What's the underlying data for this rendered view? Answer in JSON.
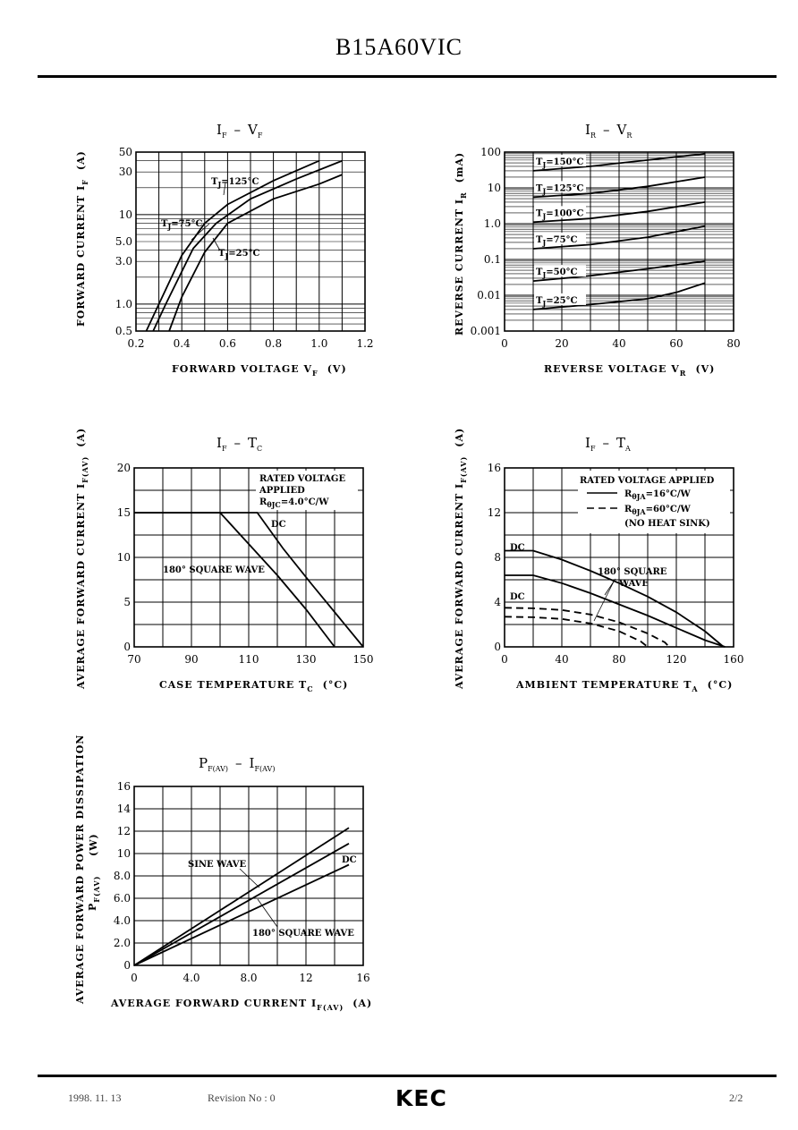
{
  "header": {
    "part_number": "B15A60VIC"
  },
  "footer": {
    "date": "1998. 11. 13",
    "revision": "Revision No : 0",
    "brand": "KEC",
    "page": "2/2"
  },
  "chart_data": [
    {
      "id": "if_vf",
      "type": "line",
      "title": "IF – VF",
      "xlabel": "FORWARD VOLTAGE VF (V)",
      "ylabel": "FORWARD CURRENT IF (A)",
      "xlim": [
        0.2,
        1.2
      ],
      "ylim": [
        0.5,
        50
      ],
      "yscale": "log",
      "x_ticks": [
        "0.2",
        "0.4",
        "0.6",
        "0.8",
        "1.0",
        "1.2"
      ],
      "y_ticks": [
        "0.5",
        "1.0",
        "3.0",
        "5.0",
        "10",
        "30",
        "50"
      ],
      "series": [
        {
          "name": "TJ=125°C",
          "points": [
            [
              0.245,
              0.5
            ],
            [
              0.3,
              1.0
            ],
            [
              0.4,
              3.5
            ],
            [
              0.5,
              8.0
            ],
            [
              0.6,
              13
            ],
            [
              0.8,
              24
            ],
            [
              1.0,
              40
            ]
          ]
        },
        {
          "name": "TJ=75°C",
          "points": [
            [
              0.275,
              0.5
            ],
            [
              0.33,
              1.0
            ],
            [
              0.45,
              4.2
            ],
            [
              0.55,
              8.0
            ],
            [
              0.7,
              15
            ],
            [
              0.9,
              25
            ],
            [
              1.1,
              40
            ]
          ]
        },
        {
          "name": "TJ=25°C",
          "points": [
            [
              0.345,
              0.5
            ],
            [
              0.4,
              1.2
            ],
            [
              0.5,
              3.8
            ],
            [
              0.6,
              8.0
            ],
            [
              0.8,
              15
            ],
            [
              1.0,
              22
            ],
            [
              1.1,
              28
            ]
          ]
        }
      ],
      "annotations": [
        "TJ=125°C",
        "TJ=75°C",
        "TJ=25°C"
      ]
    },
    {
      "id": "ir_vr",
      "type": "line",
      "title": "IR – VR",
      "xlabel": "REVERSE VOLTAGE VR (V)",
      "ylabel": "REVERSE CURRENT IR (mA)",
      "xlim": [
        0,
        80
      ],
      "ylim": [
        0.001,
        100
      ],
      "yscale": "log",
      "x_ticks": [
        "0",
        "20",
        "40",
        "60",
        "80"
      ],
      "y_ticks": [
        "0.001",
        "0.01",
        "0.1",
        "1.0",
        "10",
        "100"
      ],
      "series": [
        {
          "name": "TJ=150°C",
          "points": [
            [
              10,
              30
            ],
            [
              30,
              40
            ],
            [
              50,
              60
            ],
            [
              70,
              90
            ]
          ]
        },
        {
          "name": "TJ=125°C",
          "points": [
            [
              10,
              5.5
            ],
            [
              30,
              7
            ],
            [
              50,
              11
            ],
            [
              70,
              20
            ]
          ]
        },
        {
          "name": "TJ=100°C",
          "points": [
            [
              10,
              1.1
            ],
            [
              30,
              1.4
            ],
            [
              50,
              2.2
            ],
            [
              70,
              4
            ]
          ]
        },
        {
          "name": "TJ=75°C",
          "points": [
            [
              10,
              0.2
            ],
            [
              30,
              0.26
            ],
            [
              50,
              0.42
            ],
            [
              70,
              0.85
            ]
          ]
        },
        {
          "name": "TJ=50°C",
          "points": [
            [
              10,
              0.025
            ],
            [
              30,
              0.035
            ],
            [
              50,
              0.055
            ],
            [
              70,
              0.09
            ]
          ]
        },
        {
          "name": "TJ=25°C",
          "points": [
            [
              10,
              0.004
            ],
            [
              30,
              0.0055
            ],
            [
              50,
              0.008
            ],
            [
              60,
              0.012
            ],
            [
              70,
              0.022
            ]
          ]
        }
      ]
    },
    {
      "id": "if_tc",
      "type": "line",
      "title": "IF – TC",
      "xlabel": "CASE TEMPERATURE TC (°C)",
      "ylabel": "AVERAGE FORWARD CURRENT IF(AV) (A)",
      "xlim": [
        70,
        150
      ],
      "ylim": [
        0,
        20
      ],
      "x_ticks": [
        "70",
        "90",
        "110",
        "130",
        "150"
      ],
      "y_ticks": [
        "0",
        "5",
        "10",
        "15",
        "20"
      ],
      "note": [
        "RATED VOLTAGE",
        "APPLIED",
        "RθJC =4.0°C/W"
      ],
      "series": [
        {
          "name": "DC",
          "points": [
            [
              70,
              15
            ],
            [
              113,
              15
            ],
            [
              122,
              11
            ],
            [
              132,
              7
            ],
            [
              141,
              3.5
            ],
            [
              150,
              0
            ]
          ]
        },
        {
          "name": "180° SQUARE WAVE",
          "points": [
            [
              70,
              15
            ],
            [
              100,
              15
            ],
            [
              110,
              11.5
            ],
            [
              120,
              8
            ],
            [
              130,
              4.2
            ],
            [
              140,
              0
            ]
          ]
        }
      ]
    },
    {
      "id": "if_ta",
      "type": "line",
      "title": "IF – TA",
      "xlabel": "AMBIENT TEMPERATURE TA (°C)",
      "ylabel": "AVERAGE FORWARD CURRENT IF(AV) (A)",
      "xlim": [
        0,
        160
      ],
      "ylim": [
        0,
        16
      ],
      "x_ticks": [
        "0",
        "40",
        "80",
        "120",
        "160"
      ],
      "y_ticks": [
        "0",
        "4",
        "8",
        "12",
        "16"
      ],
      "note": [
        "RATED VOLTAGE APPLIED",
        "RθJA =16°C/W",
        "RθJA =60°C/W",
        "(NO HEAT SINK)"
      ],
      "series": [
        {
          "name": "DC RθJA=16°C/W",
          "style": "solid",
          "points": [
            [
              0,
              8.6
            ],
            [
              20,
              8.6
            ],
            [
              40,
              7.8
            ],
            [
              60,
              6.8
            ],
            [
              80,
              5.7
            ],
            [
              100,
              4.5
            ],
            [
              120,
              3.1
            ],
            [
              140,
              1.4
            ],
            [
              153,
              0
            ]
          ]
        },
        {
          "name": "180° SQUARE WAVE RθJA=16°C/W",
          "style": "solid",
          "points": [
            [
              0,
              6.4
            ],
            [
              20,
              6.4
            ],
            [
              40,
              5.7
            ],
            [
              60,
              4.8
            ],
            [
              80,
              3.8
            ],
            [
              100,
              2.8
            ],
            [
              120,
              1.7
            ],
            [
              140,
              0.6
            ],
            [
              154,
              0
            ]
          ]
        },
        {
          "name": "DC RθJA=60°C/W",
          "style": "dashed",
          "points": [
            [
              0,
              3.5
            ],
            [
              20,
              3.45
            ],
            [
              40,
              3.3
            ],
            [
              60,
              2.9
            ],
            [
              80,
              2.2
            ],
            [
              100,
              1.2
            ],
            [
              112,
              0.4
            ],
            [
              115,
              0
            ]
          ]
        },
        {
          "name": "180° SQUARE WAVE RθJA=60°C/W",
          "style": "dashed",
          "points": [
            [
              0,
              2.7
            ],
            [
              20,
              2.65
            ],
            [
              40,
              2.5
            ],
            [
              60,
              2.1
            ],
            [
              80,
              1.4
            ],
            [
              95,
              0.5
            ],
            [
              100,
              0
            ]
          ]
        }
      ],
      "labels": [
        "DC",
        "DC",
        "180° SQUARE",
        "WAVE"
      ]
    },
    {
      "id": "pf_if",
      "type": "line",
      "title": "PF(AV) – IF(AV)",
      "xlabel": "AVERAGE FORWARD CURRENT IF(AV) (A)",
      "ylabel": "AVERAGE FORWARD POWER DISSIPATION PF(AV) (W)",
      "xlim": [
        0,
        16
      ],
      "ylim": [
        0,
        16
      ],
      "x_ticks": [
        "0",
        "4.0",
        "8.0",
        "12",
        "16"
      ],
      "y_ticks": [
        "0",
        "2.0",
        "4.0",
        "6.0",
        "8.0",
        "10",
        "12",
        "14",
        "16"
      ],
      "series": [
        {
          "name": "SINE WAVE",
          "points": [
            [
              0,
              0
            ],
            [
              15,
              12.3
            ]
          ]
        },
        {
          "name": "180° SQUARE WAVE",
          "points": [
            [
              0,
              0
            ],
            [
              15,
              10.9
            ]
          ]
        },
        {
          "name": "DC",
          "points": [
            [
              0,
              0
            ],
            [
              15,
              9.0
            ]
          ]
        }
      ]
    }
  ],
  "charts": {
    "if_vf": {
      "t1": "I",
      "t1s": "F",
      "t2": "V",
      "t2s": "F",
      "xl": "FORWARD VOLTAGE V",
      "xls": "F",
      "xlu": "(V)",
      "yl": "FORWARD CURRENT I",
      "yls": "F",
      "ylu": "(A)",
      "a125": "T",
      "a125s": "J",
      "a125v": "=125°C",
      "a75": "T",
      "a75s": "J",
      "a75v": "=75°C",
      "a25": "T",
      "a25s": "J",
      "a25v": "=25°C"
    },
    "ir_vr": {
      "t1": "I",
      "t1s": "R",
      "t2": "V",
      "t2s": "R",
      "xl": "REVERSE VOLTAGE V",
      "xls": "R",
      "xlu": "(V)",
      "yl": "REVERSE CURRENT I",
      "yls": "R",
      "ylu": "(mA)"
    },
    "if_tc": {
      "t1": "I",
      "t1s": "F",
      "t2": "T",
      "t2s": "C",
      "xl": "CASE TEMPERATURE T",
      "xls": "C",
      "xlu": "(°C)",
      "yl": "AVERAGE FORWARD CURRENT I",
      "yls": "F(AV)",
      "ylu": "(A)",
      "n1": "RATED VOLTAGE",
      "n2": "APPLIED",
      "n3a": "R",
      "n3s": "θJC",
      "n3b": "=4.0°C/W",
      "dc": "DC",
      "sq": "180° SQUARE WAVE"
    },
    "if_ta": {
      "t1": "I",
      "t1s": "F",
      "t2": "T",
      "t2s": "A",
      "xl": "AMBIENT TEMPERATURE T",
      "xls": "A",
      "xlu": "(°C)",
      "yl": "AVERAGE FORWARD CURRENT I",
      "yls": "F(AV)",
      "ylu": "(A)",
      "n1": "RATED VOLTAGE APPLIED",
      "n2a": "R",
      "n2s": "θJA",
      "n2b": "=16°C/W",
      "n3a": "R",
      "n3s": "θJA",
      "n3b": "=60°C/W",
      "n4": "(NO HEAT SINK)",
      "dc1": "DC",
      "dc2": "DC",
      "sq1": "180° SQUARE",
      "sq2": "WAVE"
    },
    "pf_if": {
      "t1": "P",
      "t1s": "F(AV)",
      "t2": "I",
      "t2s": "F(AV)",
      "xl": "AVERAGE FORWARD CURRENT I",
      "xls": "F(AV)",
      "xlu": "(A)",
      "yl1": "AVERAGE FORWARD POWER DISSIPATION",
      "yl2": "(W)",
      "yl3": "P",
      "yl3s": "F(AV)",
      "sine": "SINE WAVE",
      "sq": "180° SQUARE WAVE",
      "dc": "DC"
    }
  }
}
